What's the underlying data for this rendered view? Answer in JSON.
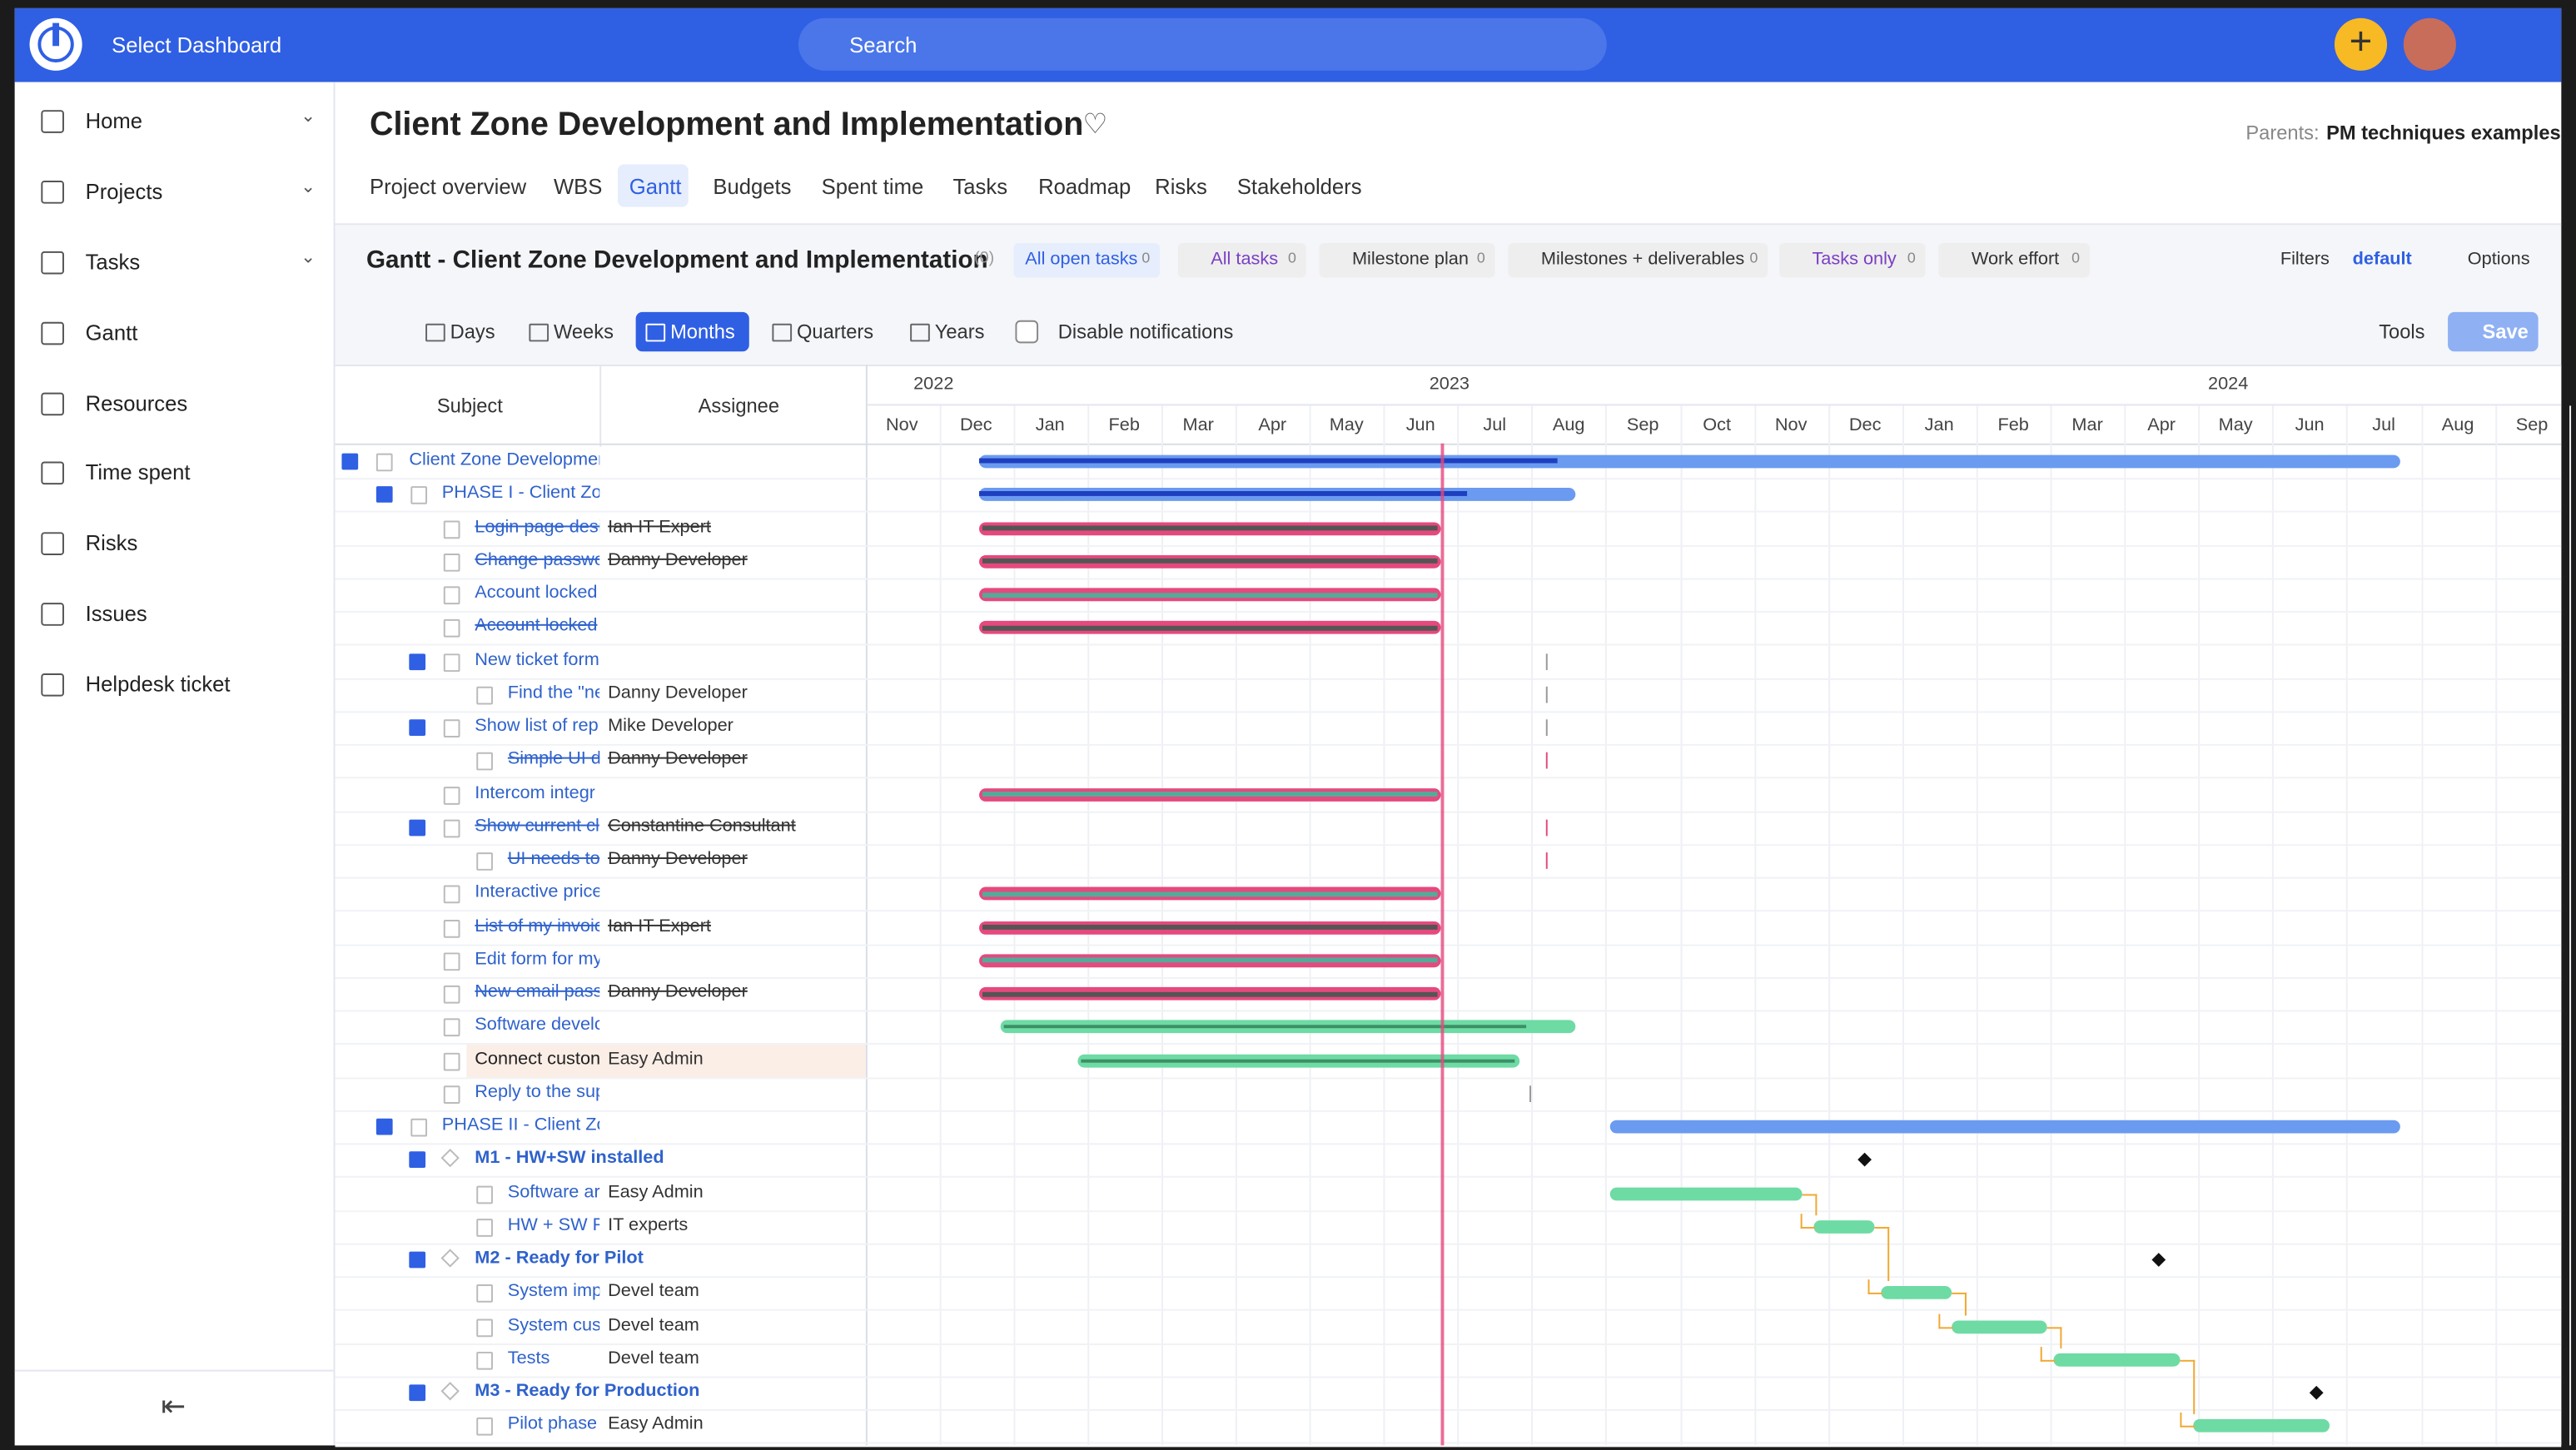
{
  "topbar": {
    "dashboard": "Select Dashboard",
    "search": "Search"
  },
  "sidebar": {
    "items": [
      "Home",
      "Projects",
      "Tasks",
      "Gantt",
      "Resources",
      "Time spent",
      "Risks",
      "Issues",
      "Helpdesk ticket"
    ]
  },
  "header": {
    "title": "Client Zone Development and Implementation",
    "parents_label": "Parents:",
    "parents": "PM techniques examples",
    "tabs": [
      "Project overview",
      "WBS",
      "Gantt",
      "Budgets",
      "Spent time",
      "Tasks",
      "Roadmap",
      "Risks",
      "Stakeholders"
    ]
  },
  "gantt": {
    "title": "Gantt - Client Zone Development and Implementation",
    "count": "(0)",
    "filters": [
      {
        "label": "All open tasks",
        "count": 0
      },
      {
        "label": "All tasks",
        "count": 0
      },
      {
        "label": "Milestone plan",
        "count": 0
      },
      {
        "label": "Milestones + deliverables",
        "count": 0
      },
      {
        "label": "Tasks only",
        "count": 0
      },
      {
        "label": "Work effort",
        "count": 0
      }
    ],
    "filters_button": "Filters",
    "default": "default",
    "options": "Options",
    "zoom": [
      "Days",
      "Weeks",
      "Months",
      "Quarters",
      "Years"
    ],
    "disable_notifications": "Disable notifications",
    "tools": "Tools",
    "save": "Save",
    "columns": [
      "Subject",
      "Assignee"
    ],
    "years": [
      "2022",
      "2023",
      "2024"
    ],
    "months": [
      "Nov",
      "Dec",
      "Jan",
      "Feb",
      "Mar",
      "Apr",
      "May",
      "Jun",
      "Jul",
      "Aug",
      "Sep",
      "Oct",
      "Nov",
      "Dec",
      "Jan",
      "Feb",
      "Mar",
      "Apr",
      "May",
      "Jun",
      "Jul",
      "Aug",
      "Sep"
    ],
    "rows": [
      {
        "subject": "Client Zone Developmer",
        "assignee": ""
      },
      {
        "subject": "PHASE I - Client Zon",
        "assignee": ""
      },
      {
        "subject": "Login page desi",
        "assignee": "Ian IT Expert"
      },
      {
        "subject": "Change passwo",
        "assignee": "Danny Developer"
      },
      {
        "subject": "Account locked",
        "assignee": ""
      },
      {
        "subject": "Account locked",
        "assignee": ""
      },
      {
        "subject": "New ticket form",
        "assignee": ""
      },
      {
        "subject": "Find the \"ne",
        "assignee": "Danny Developer"
      },
      {
        "subject": "Show list of rep",
        "assignee": "Mike Developer"
      },
      {
        "subject": "Simple UI d",
        "assignee": "Danny Developer"
      },
      {
        "subject": "Intercom integr",
        "assignee": ""
      },
      {
        "subject": "Show current cl",
        "assignee": "Constantine Consultant"
      },
      {
        "subject": "UI needs to",
        "assignee": "Danny Developer"
      },
      {
        "subject": "Interactive price",
        "assignee": ""
      },
      {
        "subject": "List of my invoic",
        "assignee": "Ian IT Expert"
      },
      {
        "subject": "Edit form for my",
        "assignee": ""
      },
      {
        "subject": "New email pass",
        "assignee": "Danny Developer"
      },
      {
        "subject": "Software develc",
        "assignee": ""
      },
      {
        "subject": "Connect custon",
        "assignee": "Easy Admin"
      },
      {
        "subject": "Reply to the sup",
        "assignee": ""
      },
      {
        "subject": "PHASE II - Client Zor",
        "assignee": ""
      },
      {
        "subject": "M1 - HW+SW installed",
        "assignee": ""
      },
      {
        "subject": "Software ar",
        "assignee": "Easy Admin"
      },
      {
        "subject": "HW + SW Pl",
        "assignee": "IT experts"
      },
      {
        "subject": "M2 - Ready for Pilot",
        "assignee": ""
      },
      {
        "subject": "System imp",
        "assignee": "Devel team"
      },
      {
        "subject": "System cus",
        "assignee": "Devel team"
      },
      {
        "subject": "Tests",
        "assignee": "Devel team"
      },
      {
        "subject": "M3 - Ready for Production",
        "assignee": ""
      },
      {
        "subject": "Pilot phase",
        "assignee": "Easy Admin"
      }
    ]
  }
}
